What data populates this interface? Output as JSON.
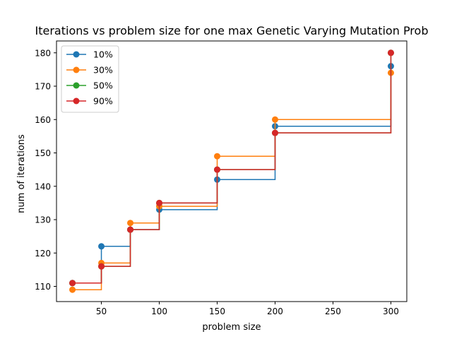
{
  "chart_data": {
    "type": "line",
    "drawstyle": "steps-post",
    "title": "Iterations vs problem size for one max Genetic Varying Mutation Prob",
    "xlabel": "problem size",
    "ylabel": "num of iterations",
    "xlim": [
      11.25,
      313.75
    ],
    "ylim": [
      105.45,
      183.55
    ],
    "xticks": [
      50,
      100,
      150,
      200,
      250,
      300
    ],
    "yticks": [
      110,
      120,
      130,
      140,
      150,
      160,
      170,
      180
    ],
    "grid": false,
    "legend_position": "top-left",
    "x": [
      25,
      50,
      75,
      100,
      150,
      200,
      300
    ],
    "series": [
      {
        "name": "10%",
        "color": "#1f77b4",
        "values": [
          111,
          122,
          127,
          133,
          142,
          158,
          176
        ]
      },
      {
        "name": "30%",
        "color": "#ff7f0e",
        "values": [
          109,
          117,
          129,
          134,
          149,
          160,
          174
        ]
      },
      {
        "name": "50%",
        "color": "#2ca02c",
        "values": [
          111,
          116,
          127,
          135,
          145,
          156,
          180
        ]
      },
      {
        "name": "90%",
        "color": "#d62728",
        "values": [
          111,
          116,
          127,
          135,
          145,
          156,
          180
        ]
      }
    ]
  }
}
